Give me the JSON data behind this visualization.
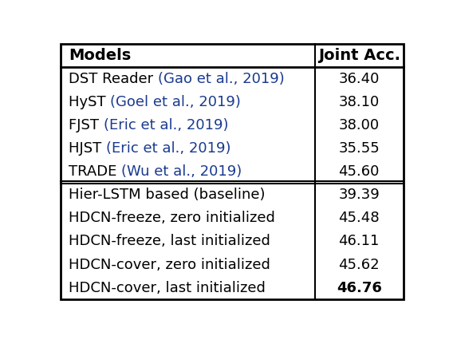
{
  "header": [
    "Models",
    "Joint Acc."
  ],
  "section1": [
    [
      [
        "DST Reader ",
        "#000000"
      ],
      [
        "(Gao et al., 2019)",
        "#1a3a8f"
      ]
    ],
    [
      [
        "HyST ",
        "#000000"
      ],
      [
        "(Goel et al., 2019)",
        "#1a3a8f"
      ]
    ],
    [
      [
        "FJST ",
        "#000000"
      ],
      [
        "(Eric et al., 2019)",
        "#1a3a8f"
      ]
    ],
    [
      [
        "HJST ",
        "#000000"
      ],
      [
        "(Eric et al., 2019)",
        "#1a3a8f"
      ]
    ],
    [
      [
        "TRADE ",
        "#000000"
      ],
      [
        "(Wu et al., 2019)",
        "#1a3a8f"
      ]
    ]
  ],
  "section1_acc": [
    "36.40",
    "38.10",
    "38.00",
    "35.55",
    "45.60"
  ],
  "section2": [
    [
      [
        "Hier-LSTM based (baseline)",
        "#000000"
      ]
    ],
    [
      [
        "HDCN-freeze, zero initialized",
        "#000000"
      ]
    ],
    [
      [
        "HDCN-freeze, last initialized",
        "#000000"
      ]
    ],
    [
      [
        "HDCN-cover, zero initialized",
        "#000000"
      ]
    ],
    [
      [
        "HDCN-cover, last initialized",
        "#000000"
      ]
    ]
  ],
  "section2_acc": [
    "39.39",
    "45.48",
    "46.11",
    "45.62",
    "46.76"
  ],
  "citation_color": "#1a3a8f",
  "text_color": "#000000",
  "border_color": "#000000",
  "col_split": 0.735,
  "fig_width": 5.68,
  "fig_height": 4.26,
  "font_size": 13.0,
  "header_font_size": 14.0
}
